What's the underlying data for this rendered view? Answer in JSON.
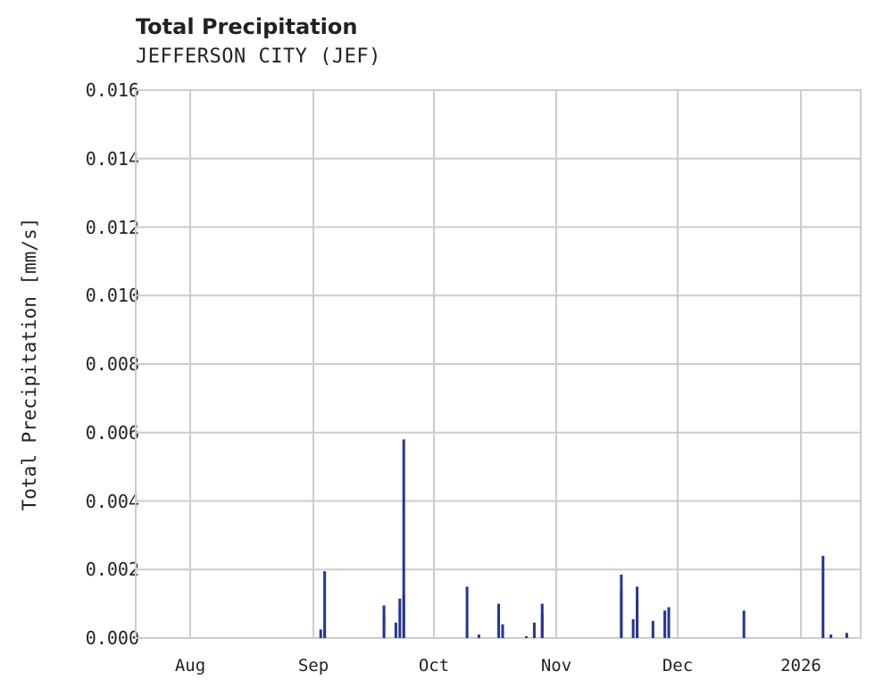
{
  "chart_data": {
    "type": "bar",
    "title": "Total Precipitation",
    "subtitle": "JEFFERSON CITY (JEF)",
    "xlabel": "",
    "ylabel": "Total Precipitation [mm/s]",
    "ylim": [
      0,
      0.016
    ],
    "yticks": [
      "0.000",
      "0.002",
      "0.004",
      "0.006",
      "0.008",
      "0.010",
      "0.012",
      "0.014",
      "0.016"
    ],
    "xticks": [
      "Aug",
      "Sep",
      "Oct",
      "Nov",
      "Dec",
      "2026"
    ],
    "grid": true,
    "series_color": "#253494",
    "series": [
      {
        "name": "Total Precipitation",
        "points": [
          {
            "date": "2025-09-03",
            "value": 0.00025
          },
          {
            "date": "2025-09-04",
            "value": 0.00025
          },
          {
            "date": "2025-09-04",
            "value": 0.00195
          },
          {
            "date": "2025-09-19",
            "value": 0.00095
          },
          {
            "date": "2025-09-19",
            "value": 0.00065
          },
          {
            "date": "2025-09-22",
            "value": 0.00045
          },
          {
            "date": "2025-09-23",
            "value": 0.00115
          },
          {
            "date": "2025-09-24",
            "value": 0.0058
          },
          {
            "date": "2025-09-24",
            "value": 0.00125
          },
          {
            "date": "2025-10-10",
            "value": 0.0015
          },
          {
            "date": "2025-10-13",
            "value": 0.0001
          },
          {
            "date": "2025-10-18",
            "value": 0.001
          },
          {
            "date": "2025-10-19",
            "value": 0.0004
          },
          {
            "date": "2025-10-25",
            "value": 5e-05
          },
          {
            "date": "2025-10-27",
            "value": 0.00045
          },
          {
            "date": "2025-10-29",
            "value": 0.0007
          },
          {
            "date": "2025-10-29",
            "value": 0.001
          },
          {
            "date": "2025-11-18",
            "value": 0.00185
          },
          {
            "date": "2025-11-18",
            "value": 0.0014
          },
          {
            "date": "2025-11-21",
            "value": 0.00055
          },
          {
            "date": "2025-11-22",
            "value": 0.0015
          },
          {
            "date": "2025-11-22",
            "value": 0.0011
          },
          {
            "date": "2025-11-26",
            "value": 0.0005
          },
          {
            "date": "2025-11-29",
            "value": 0.0008
          },
          {
            "date": "2025-11-30",
            "value": 0.0009
          },
          {
            "date": "2025-12-19",
            "value": 0.0008
          },
          {
            "date": "2026-01-08",
            "value": 0.0024
          },
          {
            "date": "2026-01-10",
            "value": 0.0001
          },
          {
            "date": "2026-01-14",
            "value": 0.00015
          }
        ]
      }
    ]
  }
}
